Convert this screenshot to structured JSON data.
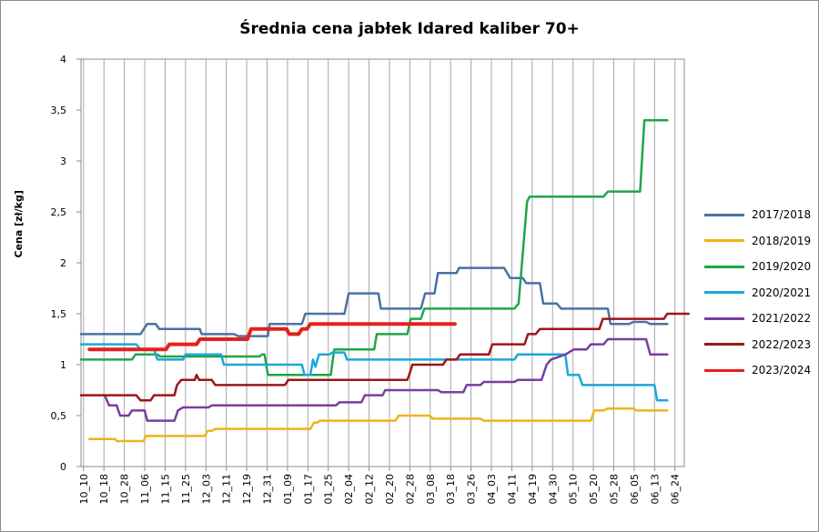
{
  "chart_data": {
    "type": "line",
    "title": "Średnia cena jabłek Idared kaliber 70+",
    "ylabel": "Cena [zł/kg]",
    "xlabel": "",
    "ylim": [
      0,
      4
    ],
    "ytick_labels": [
      "0",
      "0,5",
      "1",
      "1,5",
      "2",
      "2,5",
      "3",
      "3,5",
      "4"
    ],
    "ytick_values": [
      0,
      0.5,
      1,
      1.5,
      2,
      2.5,
      3,
      3.5,
      4
    ],
    "grid": "vertical",
    "legend_position": "right",
    "categories": [
      "10_10",
      "10_18",
      "10_28",
      "11_06",
      "11_15",
      "11_25",
      "12_03",
      "12_11",
      "12_19",
      "12_31",
      "01_09",
      "01_17",
      "01_25",
      "02_04",
      "02_12",
      "02_20",
      "02_28",
      "03_08",
      "03_18",
      "03_26",
      "04_03",
      "04_11",
      "04_19",
      "04_30",
      "05_10",
      "05_20",
      "05_28",
      "06_05",
      "06_13",
      "06_24"
    ],
    "series": [
      {
        "name": "2017/2018",
        "color": "#4a72a4",
        "width": 2.5,
        "points": [
          [
            0,
            1.3
          ],
          [
            7,
            1.3
          ],
          [
            7.8,
            1.4
          ],
          [
            8.8,
            1.4
          ],
          [
            9.2,
            1.35
          ],
          [
            14,
            1.35
          ],
          [
            14.2,
            1.3
          ],
          [
            18,
            1.3
          ],
          [
            18.5,
            1.28
          ],
          [
            22,
            1.28
          ],
          [
            22.2,
            1.4
          ],
          [
            26,
            1.4
          ],
          [
            26.4,
            1.5
          ],
          [
            31,
            1.5
          ],
          [
            31.5,
            1.7
          ],
          [
            35,
            1.7
          ],
          [
            35.3,
            1.55
          ],
          [
            40,
            1.55
          ],
          [
            40.5,
            1.7
          ],
          [
            41.6,
            1.7
          ],
          [
            42,
            1.9
          ],
          [
            44.2,
            1.9
          ],
          [
            44.5,
            1.95
          ],
          [
            49.8,
            1.95
          ],
          [
            50.5,
            1.85
          ],
          [
            52,
            1.85
          ],
          [
            52.4,
            1.8
          ],
          [
            54,
            1.8
          ],
          [
            54.4,
            1.6
          ],
          [
            56,
            1.6
          ],
          [
            56.5,
            1.55
          ],
          [
            62,
            1.55
          ],
          [
            62.3,
            1.4
          ],
          [
            64.5,
            1.4
          ],
          [
            65,
            1.42
          ],
          [
            66.5,
            1.42
          ],
          [
            67,
            1.4
          ],
          [
            69,
            1.4
          ]
        ]
      },
      {
        "name": "2018/2019",
        "color": "#f0b21e",
        "width": 2.5,
        "points": [
          [
            1,
            0.27
          ],
          [
            4,
            0.27
          ],
          [
            4.2,
            0.25
          ],
          [
            7.4,
            0.25
          ],
          [
            7.6,
            0.3
          ],
          [
            14.6,
            0.3
          ],
          [
            14.9,
            0.35
          ],
          [
            15.4,
            0.35
          ],
          [
            15.8,
            0.37
          ],
          [
            27,
            0.37
          ],
          [
            27.4,
            0.43
          ],
          [
            27.8,
            0.43
          ],
          [
            28.1,
            0.45
          ],
          [
            37,
            0.45
          ],
          [
            37.4,
            0.5
          ],
          [
            41,
            0.5
          ],
          [
            41.4,
            0.47
          ],
          [
            47,
            0.47
          ],
          [
            47.4,
            0.45
          ],
          [
            60,
            0.45
          ],
          [
            60.4,
            0.55
          ],
          [
            61.5,
            0.55
          ],
          [
            62,
            0.57
          ],
          [
            65,
            0.57
          ],
          [
            65.4,
            0.55
          ],
          [
            69,
            0.55
          ]
        ]
      },
      {
        "name": "2019/2020",
        "color": "#1ea64a",
        "width": 2.5,
        "points": [
          [
            0,
            1.05
          ],
          [
            6,
            1.05
          ],
          [
            6.4,
            1.1
          ],
          [
            9,
            1.1
          ],
          [
            9.3,
            1.08
          ],
          [
            21,
            1.08
          ],
          [
            21.3,
            1.1
          ],
          [
            21.6,
            1.1
          ],
          [
            22,
            0.9
          ],
          [
            29.4,
            0.9
          ],
          [
            29.8,
            1.15
          ],
          [
            34.5,
            1.15
          ],
          [
            34.8,
            1.3
          ],
          [
            38.4,
            1.3
          ],
          [
            38.8,
            1.45
          ],
          [
            40,
            1.45
          ],
          [
            40.4,
            1.55
          ],
          [
            51,
            1.55
          ],
          [
            51.5,
            1.6
          ],
          [
            52.5,
            2.6
          ],
          [
            52.8,
            2.65
          ],
          [
            61.5,
            2.65
          ],
          [
            62,
            2.7
          ],
          [
            65.8,
            2.7
          ],
          [
            66.3,
            3.4
          ],
          [
            69,
            3.4
          ]
        ]
      },
      {
        "name": "2020/2021",
        "color": "#1ba8da",
        "width": 2.5,
        "points": [
          [
            0,
            1.2
          ],
          [
            6.5,
            1.2
          ],
          [
            7,
            1.15
          ],
          [
            8.6,
            1.15
          ],
          [
            9,
            1.05
          ],
          [
            12,
            1.05
          ],
          [
            12.3,
            1.1
          ],
          [
            16.5,
            1.1
          ],
          [
            16.8,
            1.0
          ],
          [
            26,
            1.0
          ],
          [
            26.3,
            0.9
          ],
          [
            27,
            0.9
          ],
          [
            27.3,
            1.05
          ],
          [
            27.6,
            0.98
          ],
          [
            28,
            1.1
          ],
          [
            29.2,
            1.1
          ],
          [
            29.6,
            1.12
          ],
          [
            31,
            1.12
          ],
          [
            31.3,
            1.05
          ],
          [
            51,
            1.05
          ],
          [
            51.4,
            1.1
          ],
          [
            57,
            1.1
          ],
          [
            57.3,
            0.9
          ],
          [
            58.6,
            0.9
          ],
          [
            59,
            0.8
          ],
          [
            67.5,
            0.8
          ],
          [
            67.8,
            0.65
          ],
          [
            69,
            0.65
          ]
        ]
      },
      {
        "name": "2021/2022",
        "color": "#7a3da2",
        "width": 2.5,
        "points": [
          [
            2.8,
            0.7
          ],
          [
            3.3,
            0.6
          ],
          [
            4.2,
            0.6
          ],
          [
            4.6,
            0.5
          ],
          [
            5.6,
            0.5
          ],
          [
            6,
            0.55
          ],
          [
            7.5,
            0.55
          ],
          [
            7.8,
            0.45
          ],
          [
            11,
            0.45
          ],
          [
            11.4,
            0.55
          ],
          [
            12,
            0.58
          ],
          [
            15,
            0.58
          ],
          [
            15.4,
            0.6
          ],
          [
            30,
            0.6
          ],
          [
            30.4,
            0.63
          ],
          [
            33,
            0.63
          ],
          [
            33.4,
            0.7
          ],
          [
            35.5,
            0.7
          ],
          [
            35.8,
            0.75
          ],
          [
            42,
            0.75
          ],
          [
            42.4,
            0.73
          ],
          [
            45,
            0.73
          ],
          [
            45.4,
            0.8
          ],
          [
            47,
            0.8
          ],
          [
            47.4,
            0.83
          ],
          [
            51,
            0.83
          ],
          [
            51.4,
            0.85
          ],
          [
            54.2,
            0.85
          ],
          [
            54.8,
            1.0
          ],
          [
            55.3,
            1.05
          ],
          [
            57,
            1.1
          ],
          [
            58,
            1.15
          ],
          [
            59.5,
            1.15
          ],
          [
            60,
            1.2
          ],
          [
            61.5,
            1.2
          ],
          [
            62,
            1.25
          ],
          [
            66.5,
            1.25
          ],
          [
            67,
            1.1
          ],
          [
            69,
            1.1
          ]
        ]
      },
      {
        "name": "2022/2023",
        "color": "#9c1616",
        "width": 2.5,
        "points": [
          [
            0,
            0.7
          ],
          [
            6.5,
            0.7
          ],
          [
            7,
            0.65
          ],
          [
            8.2,
            0.65
          ],
          [
            8.6,
            0.7
          ],
          [
            11,
            0.7
          ],
          [
            11.3,
            0.8
          ],
          [
            11.8,
            0.85
          ],
          [
            13.4,
            0.85
          ],
          [
            13.6,
            0.9
          ],
          [
            13.9,
            0.85
          ],
          [
            15.4,
            0.85
          ],
          [
            15.8,
            0.8
          ],
          [
            24,
            0.8
          ],
          [
            24.4,
            0.85
          ],
          [
            38.4,
            0.85
          ],
          [
            38.7,
            0.92
          ],
          [
            39,
            1.0
          ],
          [
            42.6,
            1.0
          ],
          [
            43,
            1.05
          ],
          [
            44.2,
            1.05
          ],
          [
            44.6,
            1.1
          ],
          [
            48,
            1.1
          ],
          [
            48.4,
            1.2
          ],
          [
            52.2,
            1.2
          ],
          [
            52.6,
            1.3
          ],
          [
            53.5,
            1.3
          ],
          [
            54,
            1.35
          ],
          [
            61,
            1.35
          ],
          [
            61.4,
            1.45
          ],
          [
            68.6,
            1.45
          ],
          [
            69,
            1.5
          ],
          [
            71.5,
            1.5
          ]
        ]
      },
      {
        "name": "2023/2024",
        "color": "#e4201c",
        "width": 4,
        "points": [
          [
            1,
            1.15
          ],
          [
            10,
            1.15
          ],
          [
            10.4,
            1.2
          ],
          [
            13.6,
            1.2
          ],
          [
            14,
            1.25
          ],
          [
            19.6,
            1.25
          ],
          [
            20,
            1.35
          ],
          [
            24.2,
            1.35
          ],
          [
            24.5,
            1.3
          ],
          [
            25.6,
            1.3
          ],
          [
            26,
            1.35
          ],
          [
            26.6,
            1.35
          ],
          [
            27,
            1.4
          ],
          [
            44,
            1.4
          ]
        ]
      }
    ]
  }
}
